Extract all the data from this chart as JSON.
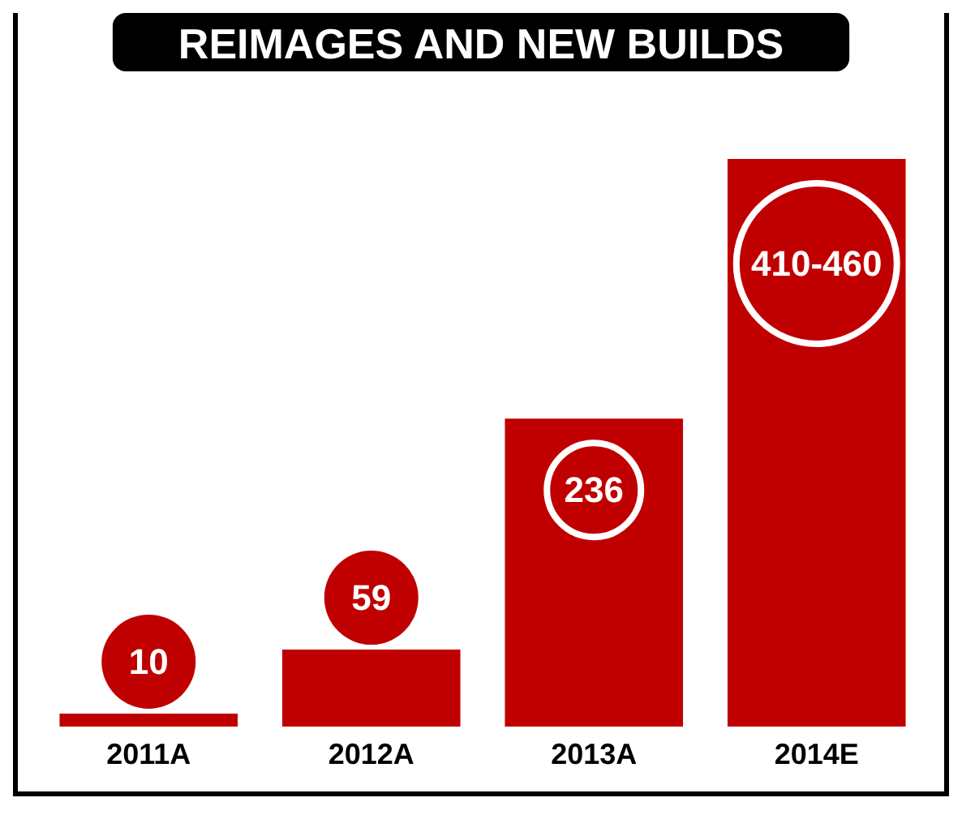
{
  "chart_data": {
    "type": "bar",
    "title": "REIMAGES AND NEW BUILDS",
    "categories": [
      "2011A",
      "2012A",
      "2013A",
      "2014E"
    ],
    "values": [
      10,
      59,
      236,
      435
    ],
    "value_labels": [
      "10",
      "59",
      "236",
      "410-460"
    ],
    "color": "#c00000"
  }
}
